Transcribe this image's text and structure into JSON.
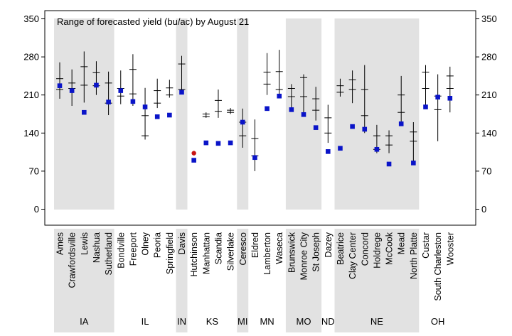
{
  "chart_data": {
    "type": "range",
    "title": "Range of forecasted yield (bu/ac) by August 21",
    "ylim": [
      -20,
      355
    ],
    "y_ticks": [
      "0",
      "70",
      "140",
      "210",
      "280",
      "350"
    ],
    "right_axis_ticks": [
      "0",
      "70",
      "140",
      "210",
      "280",
      "350"
    ],
    "colors": {
      "marker": "#0a14c8",
      "highlight": "#c81414",
      "shade": "#e2e2e2",
      "line": "#000000"
    },
    "groups": [
      {
        "state": "IA",
        "shaded": true,
        "sites": [
          {
            "name": "Ames",
            "lo": 203,
            "hi": 270,
            "marks": [
              240,
              220
            ],
            "yield": 227
          },
          {
            "name": "Crawfordsville",
            "lo": 190,
            "hi": 257,
            "marks": [
              232,
              222
            ],
            "yield": 218
          },
          {
            "name": "Lewis",
            "lo": 196,
            "hi": 290,
            "marks": [
              262,
              228
            ],
            "yield": 178
          },
          {
            "name": "Nashua",
            "lo": 210,
            "hi": 272,
            "marks": [
              251,
              227
            ],
            "yield": 228
          },
          {
            "name": "Sutherland",
            "lo": 173,
            "hi": 253,
            "marks": [
              232,
              195
            ],
            "yield": 197
          }
        ]
      },
      {
        "state": "IL",
        "shaded": false,
        "sites": [
          {
            "name": "Bondville",
            "lo": 193,
            "hi": 255,
            "marks": [
              222,
              208
            ],
            "yield": 218
          },
          {
            "name": "Freeport",
            "lo": 190,
            "hi": 285,
            "marks": [
              257,
              212
            ],
            "yield": 198
          },
          {
            "name": "Olney",
            "lo": 128,
            "hi": 223,
            "marks": [
              172,
              135
            ],
            "yield": 188
          },
          {
            "name": "Peoria",
            "lo": 186,
            "hi": 240,
            "marks": [
              218,
              195
            ],
            "yield": 170
          },
          {
            "name": "Springfield",
            "lo": 205,
            "hi": 238,
            "marks": [
              223,
              210
            ],
            "yield": 173
          }
        ]
      },
      {
        "state": "IN",
        "shaded": true,
        "sites": [
          {
            "name": "Davis",
            "lo": 215,
            "hi": 282,
            "marks": [
              267,
              220
            ],
            "yield": 215
          }
        ]
      },
      {
        "state": "KS",
        "shaded": false,
        "sites": [
          {
            "name": "Hutchinson",
            "lo": 103,
            "hi": 103,
            "marks": [],
            "yield": 90,
            "highlight": 103
          },
          {
            "name": "Manhattan",
            "lo": 168,
            "hi": 178,
            "marks": [
              175,
              170
            ],
            "yield": 122
          },
          {
            "name": "Scandia",
            "lo": 168,
            "hi": 220,
            "marks": [
              200,
              180
            ],
            "yield": 121
          },
          {
            "name": "Silverlake",
            "lo": 175,
            "hi": 186,
            "marks": [
              182,
              178
            ],
            "yield": 122
          }
        ]
      },
      {
        "state": "MI",
        "shaded": true,
        "sites": [
          {
            "name": "Ceresco",
            "lo": 113,
            "hi": 185,
            "marks": [
              160,
              135
            ],
            "yield": 160
          }
        ]
      },
      {
        "state": "MN",
        "shaded": false,
        "sites": [
          {
            "name": "Eldred",
            "lo": 70,
            "hi": 165,
            "marks": [
              130,
              98
            ],
            "yield": 95
          },
          {
            "name": "Lamberton",
            "lo": 210,
            "hi": 287,
            "marks": [
              252,
              230
            ],
            "yield": 185
          },
          {
            "name": "Waseca",
            "lo": 205,
            "hi": 293,
            "marks": [
              253,
              220
            ],
            "yield": 208
          }
        ]
      },
      {
        "state": "MO",
        "shaded": true,
        "sites": [
          {
            "name": "Brunswick",
            "lo": 183,
            "hi": 230,
            "marks": [
              222,
              207
            ],
            "yield": 183
          },
          {
            "name": "Monroe City",
            "lo": 178,
            "hi": 248,
            "marks": [
              242,
              207
            ],
            "yield": 174
          },
          {
            "name": "St Joseph",
            "lo": 163,
            "hi": 225,
            "marks": [
              203,
              182
            ],
            "yield": 150
          }
        ]
      },
      {
        "state": "ND",
        "shaded": false,
        "sites": [
          {
            "name": "Dazey",
            "lo": 122,
            "hi": 192,
            "marks": [
              168,
              140
            ],
            "yield": 106
          }
        ]
      },
      {
        "state": "NE",
        "shaded": true,
        "sites": [
          {
            "name": "Beatrice",
            "lo": 207,
            "hi": 240,
            "marks": [
              227,
              215
            ],
            "yield": 112
          },
          {
            "name": "Clay Center",
            "lo": 195,
            "hi": 255,
            "marks": [
              238,
              220
            ],
            "yield": 152
          },
          {
            "name": "Concord",
            "lo": 140,
            "hi": 265,
            "marks": [
              220,
              172
            ],
            "yield": 147
          },
          {
            "name": "Holdrege",
            "lo": 103,
            "hi": 155,
            "marks": [
              135,
              110
            ],
            "yield": 110
          },
          {
            "name": "McCook",
            "lo": 103,
            "hi": 145,
            "marks": [
              135,
              118
            ],
            "yield": 83
          },
          {
            "name": "Mead",
            "lo": 158,
            "hi": 245,
            "marks": [
              210,
              178
            ],
            "yield": 157
          },
          {
            "name": "North Platte",
            "lo": 88,
            "hi": 160,
            "marks": [
              142,
              125
            ],
            "yield": 85
          }
        ]
      },
      {
        "state": "OH",
        "shaded": false,
        "sites": [
          {
            "name": "Custar",
            "lo": 185,
            "hi": 265,
            "marks": [
              252,
              222
            ],
            "yield": 188
          },
          {
            "name": "South Charleston",
            "lo": 125,
            "hi": 248,
            "marks": [
              208,
              183
            ],
            "yield": 206
          },
          {
            "name": "Wooster",
            "lo": 178,
            "hi": 262,
            "marks": [
              245,
              222
            ],
            "yield": 204
          }
        ]
      }
    ]
  }
}
